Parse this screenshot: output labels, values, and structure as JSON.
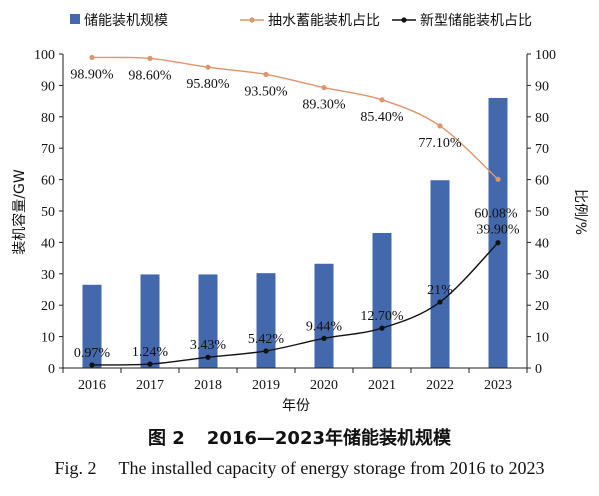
{
  "chart_data": {
    "type": "bar",
    "categories": [
      "2016",
      "2017",
      "2018",
      "2019",
      "2020",
      "2021",
      "2022",
      "2023"
    ],
    "series": [
      {
        "name": "储能装机规模",
        "type": "bar",
        "axis": "left",
        "color": "#4369ac",
        "values": [
          26.5,
          29.8,
          29.8,
          30.2,
          33.2,
          43.0,
          59.8,
          86.0
        ],
        "labels": []
      },
      {
        "name": "抽水蓄能装机占比",
        "type": "line",
        "axis": "right",
        "color": "#e0946a",
        "values": [
          98.9,
          98.6,
          95.8,
          93.5,
          89.3,
          85.4,
          77.1,
          60.08
        ],
        "labels": [
          "98.90%",
          "98.60%",
          "95.80%",
          "93.50%",
          "89.30%",
          "85.40%",
          "77.10%",
          "60.08%"
        ]
      },
      {
        "name": "新型储能装机占比",
        "type": "line",
        "axis": "right",
        "color": "#111111",
        "values": [
          0.97,
          1.24,
          3.43,
          5.42,
          9.44,
          12.7,
          21.0,
          39.9
        ],
        "labels": [
          "0.97%",
          "1.24%",
          "3.43%",
          "5.42%",
          "9.44%",
          "12.70%",
          "21%",
          "39.90%"
        ]
      }
    ],
    "xlabel": "年份",
    "ylabel": "装机容量/GW",
    "y2label": "比例/%",
    "ylim": [
      0,
      100
    ],
    "y2lim": [
      0,
      100
    ],
    "yticks": [
      "0",
      "10",
      "20",
      "30",
      "40",
      "50",
      "60",
      "70",
      "80",
      "90",
      "100"
    ],
    "grid": false,
    "legend": "top"
  },
  "caption": {
    "cn_num": "图 2",
    "cn_text": "2016—2023年储能装机规模",
    "en_num": "Fig. 2",
    "en_text": "The installed capacity of energy storage from 2016 to 2023"
  }
}
